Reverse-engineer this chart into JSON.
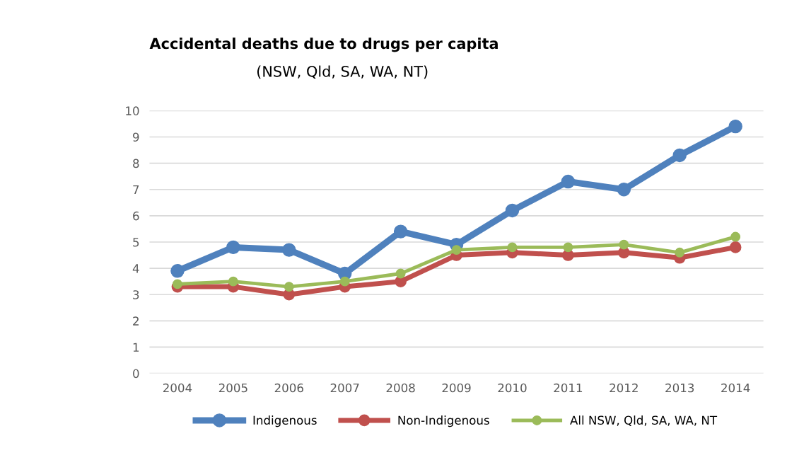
{
  "chart_data": {
    "type": "line",
    "title": "Accidental deaths due to drugs per capita",
    "subtitle": "(NSW, Qld, SA, WA, NT)",
    "categories": [
      "2004",
      "2005",
      "2006",
      "2007",
      "2008",
      "2009",
      "2010",
      "2011",
      "2012",
      "2013",
      "2014"
    ],
    "series": [
      {
        "name": "Indigenous",
        "color": "#4f81bd",
        "values": [
          3.9,
          4.8,
          4.7,
          3.8,
          5.4,
          4.9,
          6.2,
          7.3,
          7.0,
          8.3,
          9.4
        ]
      },
      {
        "name": "Non-Indigenous",
        "color": "#c0504d",
        "values": [
          3.3,
          3.3,
          3.0,
          3.3,
          3.5,
          4.5,
          4.6,
          4.5,
          4.6,
          4.4,
          4.8
        ]
      },
      {
        "name": "All NSW, Qld, SA, WA, NT",
        "color": "#9bbb59",
        "values": [
          3.4,
          3.5,
          3.3,
          3.5,
          3.8,
          4.7,
          4.8,
          4.8,
          4.9,
          4.6,
          5.2
        ]
      }
    ],
    "ylim": [
      0,
      10
    ],
    "yticks": [
      0,
      1,
      2,
      3,
      4,
      5,
      6,
      7,
      8,
      9,
      10
    ],
    "grid": "y",
    "legend": "bottom",
    "marker": "circle",
    "line_style": "solid"
  }
}
